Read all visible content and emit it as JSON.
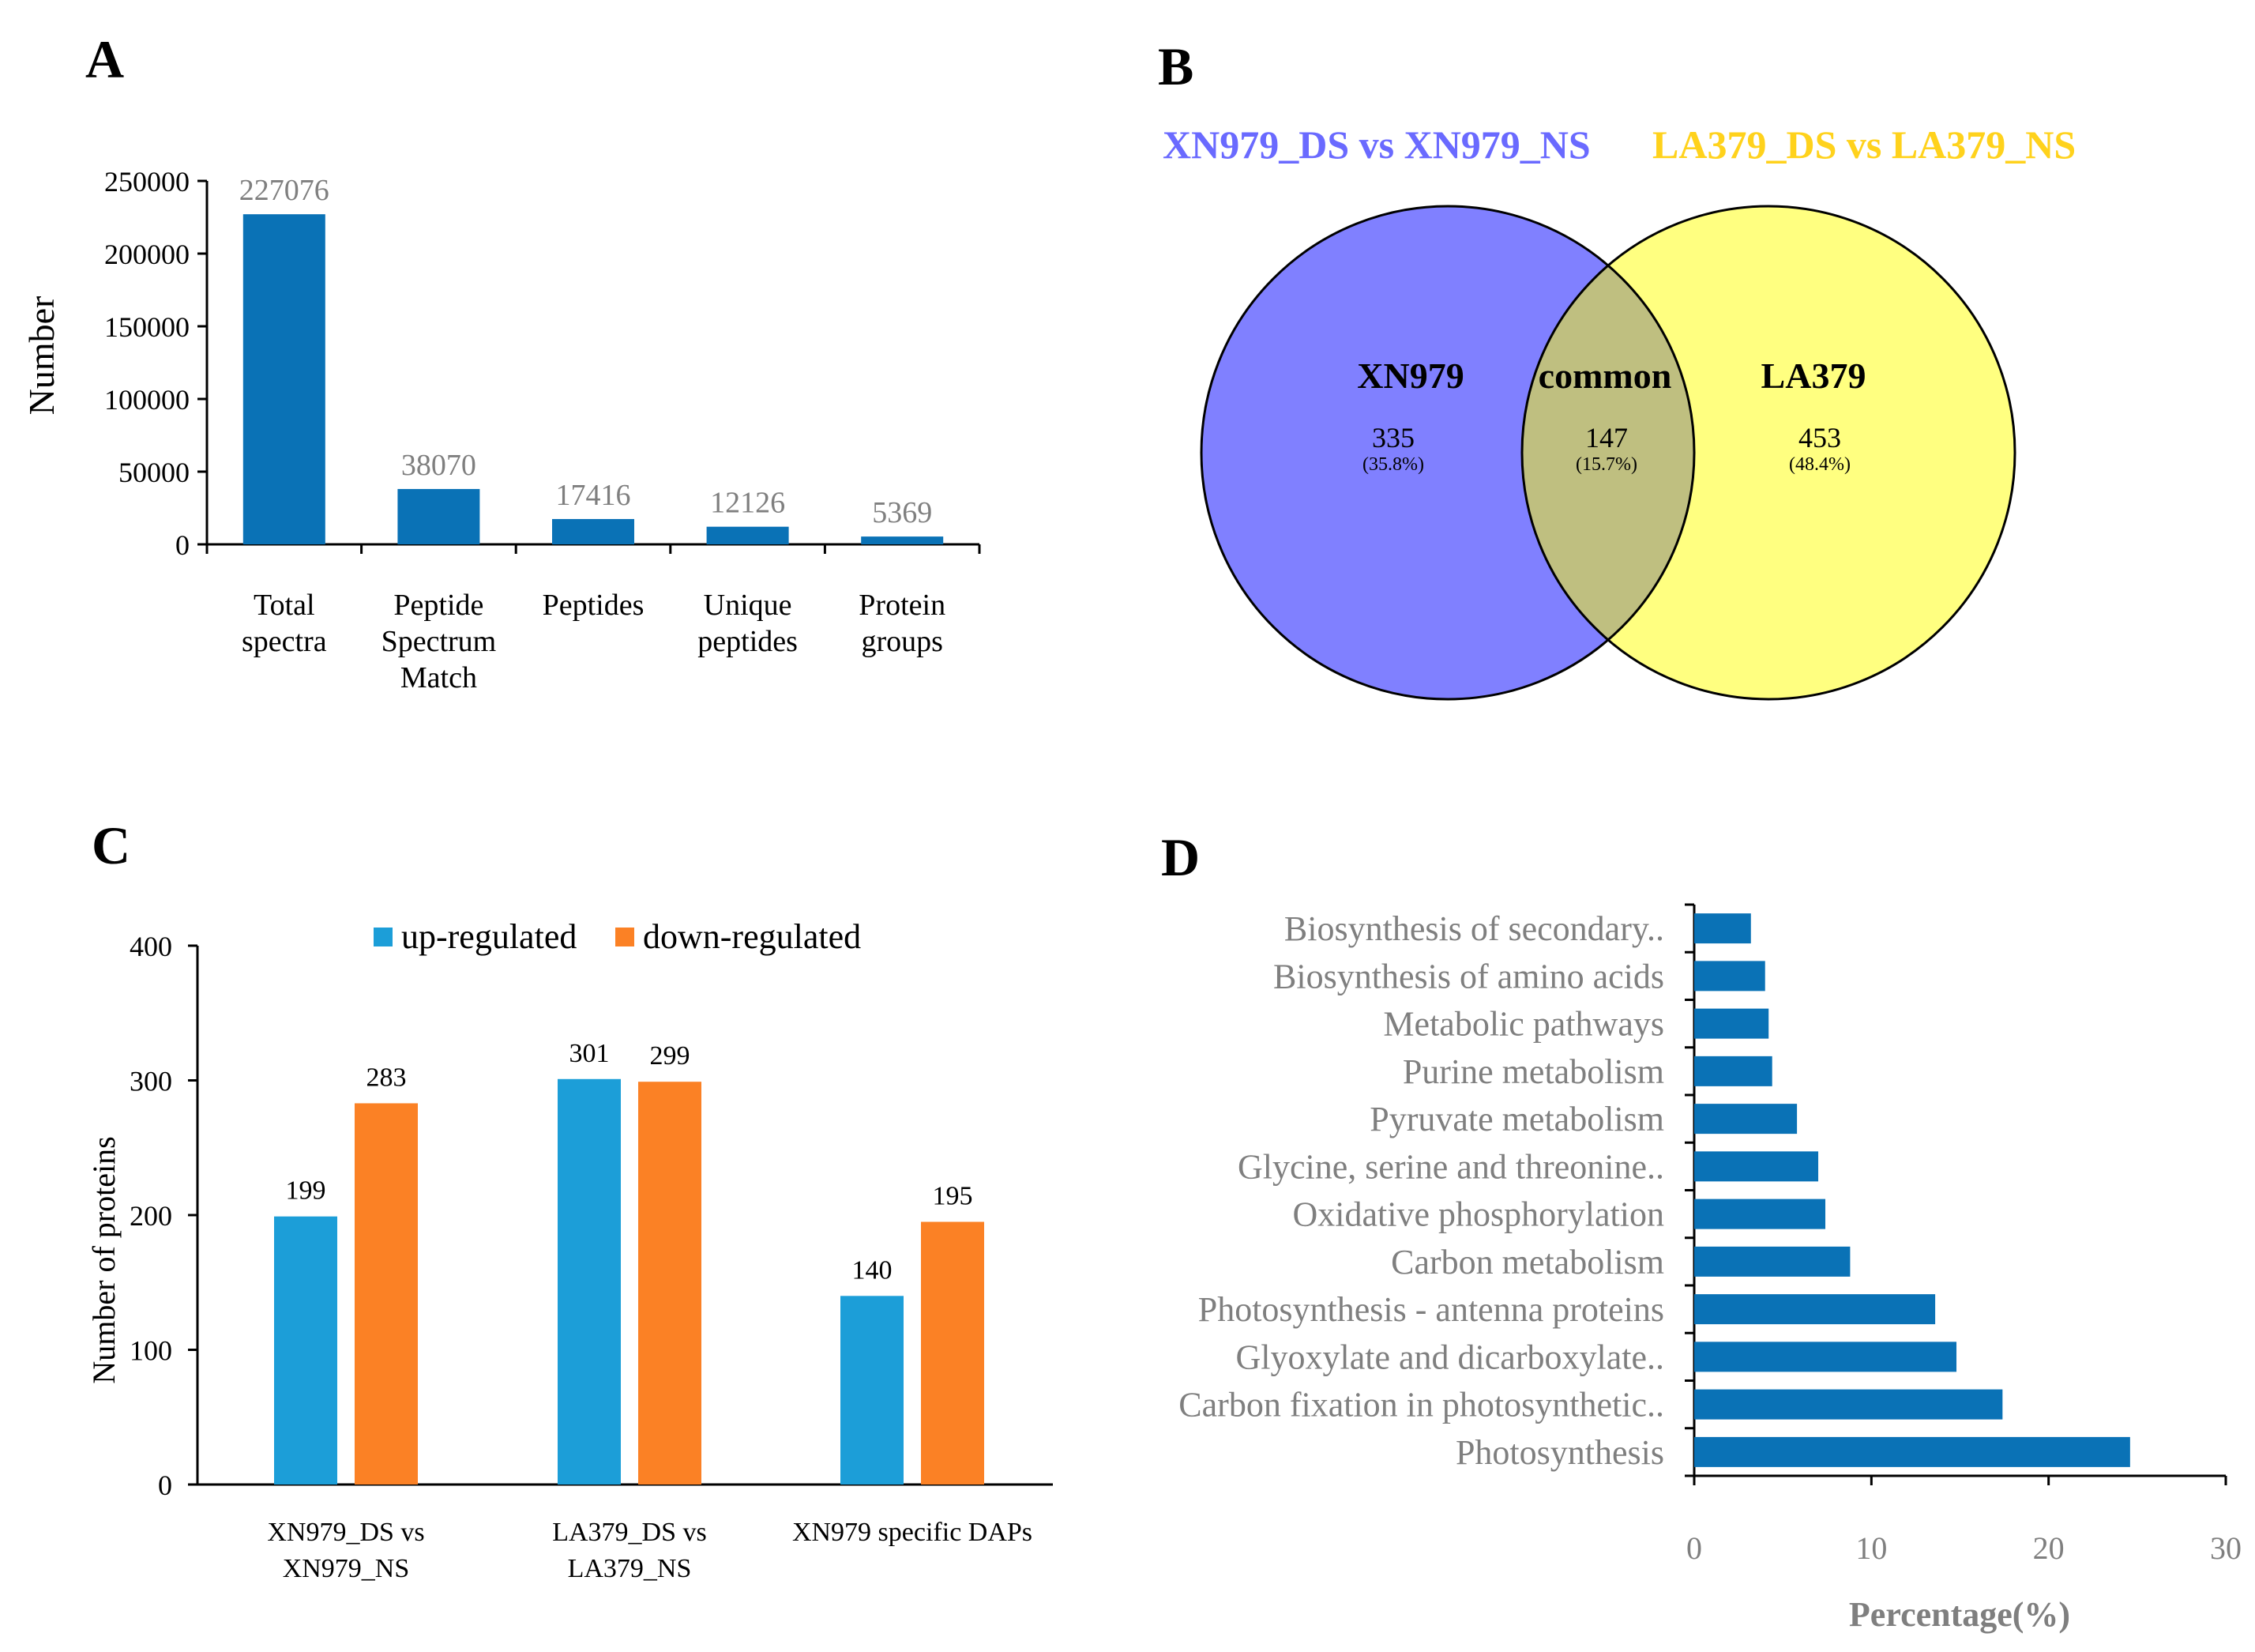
{
  "panels": {
    "a": "A",
    "b": "B",
    "c": "C",
    "d": "D"
  },
  "colors": {
    "bar_blue": "#0a72b6",
    "up_blue": "#1c9ed8",
    "down_orange": "#fb8125",
    "venn_left": "#8080ff",
    "venn_right": "#ffff80",
    "venn_overlap": "#bfbf80",
    "title_left": "#6a6aff",
    "title_right": "#ffd21c",
    "tick_gray": "#7f7f7f"
  },
  "chart_data": [
    {
      "id": "A",
      "type": "bar",
      "categories": [
        [
          "Total",
          "spectra"
        ],
        [
          "Peptide",
          "Spectrum",
          "Match"
        ],
        [
          "Peptides"
        ],
        [
          "Unique",
          "peptides"
        ],
        [
          "Protein",
          "groups"
        ]
      ],
      "values": [
        227076,
        38070,
        17416,
        12126,
        5369
      ],
      "value_labels": [
        "227076",
        "38070",
        "17416",
        "12126",
        "5369"
      ],
      "ylabel": "Number",
      "ylim": [
        0,
        250000
      ],
      "yticks": [
        "0",
        "50000",
        "100000",
        "150000",
        "200000",
        "250000"
      ],
      "grid": false
    },
    {
      "id": "B",
      "type": "venn",
      "set_titles": [
        "XN979_DS vs XN979_NS",
        "LA379_DS vs LA379_NS"
      ],
      "regions": [
        {
          "name": "XN979",
          "count": "335",
          "percent": "(35.8%)"
        },
        {
          "name": "common",
          "count": "147",
          "percent": "(15.7%)"
        },
        {
          "name": "LA379",
          "count": "453",
          "percent": "(48.4%)"
        }
      ]
    },
    {
      "id": "C",
      "type": "bar",
      "categories": [
        [
          "XN979_DS vs",
          "XN979_NS"
        ],
        [
          "LA379_DS vs",
          "LA379_NS"
        ],
        [
          "XN979  specific DAPs"
        ]
      ],
      "series": [
        {
          "name": "up-regulated",
          "values": [
            199,
            301,
            140
          ]
        },
        {
          "name": "down-regulated",
          "values": [
            283,
            299,
            195
          ]
        }
      ],
      "ylabel": "Number of proteins",
      "ylim": [
        0,
        400
      ],
      "yticks": [
        "0",
        "100",
        "200",
        "300",
        "400"
      ],
      "legend": "top-center",
      "grid": false
    },
    {
      "id": "D",
      "type": "bar",
      "orientation": "horizontal",
      "categories": [
        "Biosynthesis of secondary..",
        "Biosynthesis of amino acids",
        "Metabolic pathways",
        "Purine metabolism",
        "Pyruvate metabolism",
        "Glycine, serine and threonine..",
        "Oxidative phosphorylation",
        "Carbon metabolism",
        "Photosynthesis - antenna proteins",
        "Glyoxylate and dicarboxylate..",
        "Carbon fixation in photosynthetic..",
        "Photosynthesis"
      ],
      "values": [
        3.2,
        4.0,
        4.2,
        4.4,
        5.8,
        7.0,
        7.4,
        8.8,
        13.6,
        14.8,
        17.4,
        24.6
      ],
      "xlabel": "Percentage(%)",
      "xlim": [
        0,
        30
      ],
      "xticks": [
        "0",
        "10",
        "20",
        "30"
      ],
      "grid": false
    }
  ]
}
